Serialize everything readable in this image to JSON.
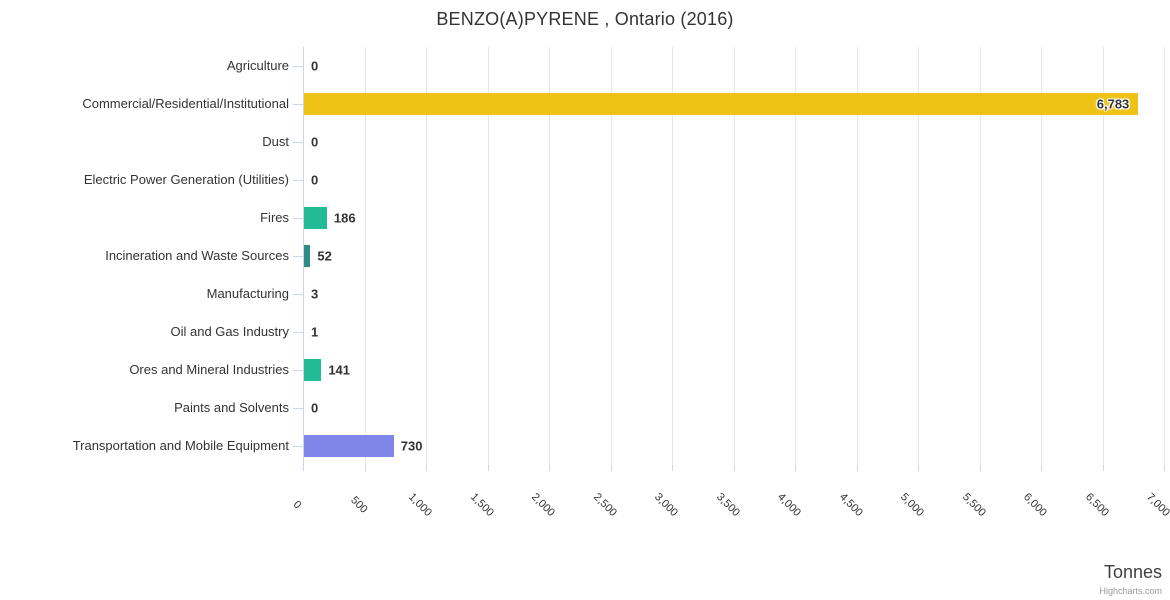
{
  "title": "BENZO(A)PYRENE , Ontario (2016)",
  "credits_label": "Highcharts.com",
  "chart_data": {
    "type": "bar",
    "orientation": "horizontal",
    "title": "BENZO(A)PYRENE , Ontario (2016)",
    "xlabel": "Tonnes",
    "ylabel": "",
    "grid": true,
    "legend": "none",
    "categories": [
      "Agriculture",
      "Commercial/Residential/Institutional",
      "Dust",
      "Electric Power Generation (Utilities)",
      "Fires",
      "Incineration and Waste Sources",
      "Manufacturing",
      "Oil and Gas Industry",
      "Ores and Mineral Industries",
      "Paints and Solvents",
      "Transportation and Mobile Equipment"
    ],
    "values": [
      0,
      6783,
      0,
      0,
      186,
      52,
      3,
      1,
      141,
      0,
      730
    ],
    "value_labels": [
      "0",
      "6,783",
      "0",
      "0",
      "186",
      "52",
      "3",
      "1",
      "141",
      "0",
      "730"
    ],
    "bar_colors": [
      "#22bb95",
      "#eec315",
      "#22bb95",
      "#22bb95",
      "#22bb95",
      "#2e8b88",
      "#22bb95",
      "#22bb95",
      "#22bb95",
      "#22bb95",
      "#8085e9"
    ],
    "axis": {
      "min": 0,
      "max": 7000,
      "tick_interval": 500,
      "tick_labels": [
        "0",
        "500",
        "1,000",
        "1,500",
        "2,000",
        "2,500",
        "3,000",
        "3,500",
        "4,000",
        "4,500",
        "5,000",
        "5,500",
        "6,000",
        "6,500",
        "7,000"
      ]
    },
    "colors": {
      "gridline": "#e6e6e6",
      "axis_line": "#ccd6eb",
      "text": "#333333",
      "axis_title": "#3f3f3f",
      "credits": "#999999"
    }
  }
}
